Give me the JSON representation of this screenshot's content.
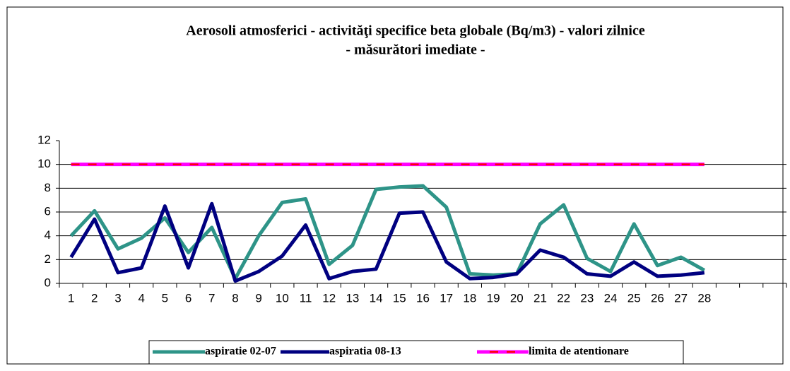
{
  "chart_data": {
    "type": "line",
    "title": "Aerosoli atmosferici - activităţi specifice beta   globale (Bq/m3) - valori zilnice",
    "subtitle": "- măsurători imediate -",
    "categories": [
      "1",
      "2",
      "3",
      "4",
      "5",
      "6",
      "7",
      "8",
      "9",
      "10",
      "11",
      "12",
      "13",
      "14",
      "15",
      "16",
      "17",
      "18",
      "19",
      "20",
      "21",
      "22",
      "23",
      "24",
      "25",
      "26",
      "27",
      "28",
      null,
      null,
      null
    ],
    "series": [
      {
        "name": "aspiratie 02-07",
        "color": "#2e9488",
        "values": [
          4.0,
          6.1,
          2.9,
          3.8,
          5.5,
          2.6,
          4.7,
          0.4,
          4.0,
          6.8,
          7.1,
          1.6,
          3.2,
          7.9,
          8.1,
          8.2,
          6.4,
          0.8,
          0.7,
          0.8,
          5.0,
          6.6,
          2.1,
          1.0,
          5.0,
          1.5,
          2.2,
          1.1,
          null,
          null,
          null
        ]
      },
      {
        "name": "aspiratia 08-13",
        "color": "#000080",
        "values": [
          2.2,
          5.4,
          0.9,
          1.3,
          6.5,
          1.3,
          6.7,
          0.2,
          1.0,
          2.3,
          4.9,
          0.4,
          1.0,
          1.2,
          5.9,
          6.0,
          1.8,
          0.4,
          0.5,
          0.8,
          2.8,
          2.2,
          0.8,
          0.6,
          1.8,
          0.6,
          0.7,
          0.9,
          null,
          null,
          null
        ]
      },
      {
        "name": "limita de atentionare",
        "color": "#ff00ff",
        "dash_color": "#ff0000",
        "values": [
          10,
          10,
          10,
          10,
          10,
          10,
          10,
          10,
          10,
          10,
          10,
          10,
          10,
          10,
          10,
          10,
          10,
          10,
          10,
          10,
          10,
          10,
          10,
          10,
          10,
          10,
          10,
          10,
          null,
          null,
          null
        ]
      }
    ],
    "ylim": [
      0,
      12
    ],
    "yticks": [
      0,
      2,
      4,
      6,
      8,
      10,
      12
    ],
    "grid": true,
    "legend": "bottom"
  }
}
